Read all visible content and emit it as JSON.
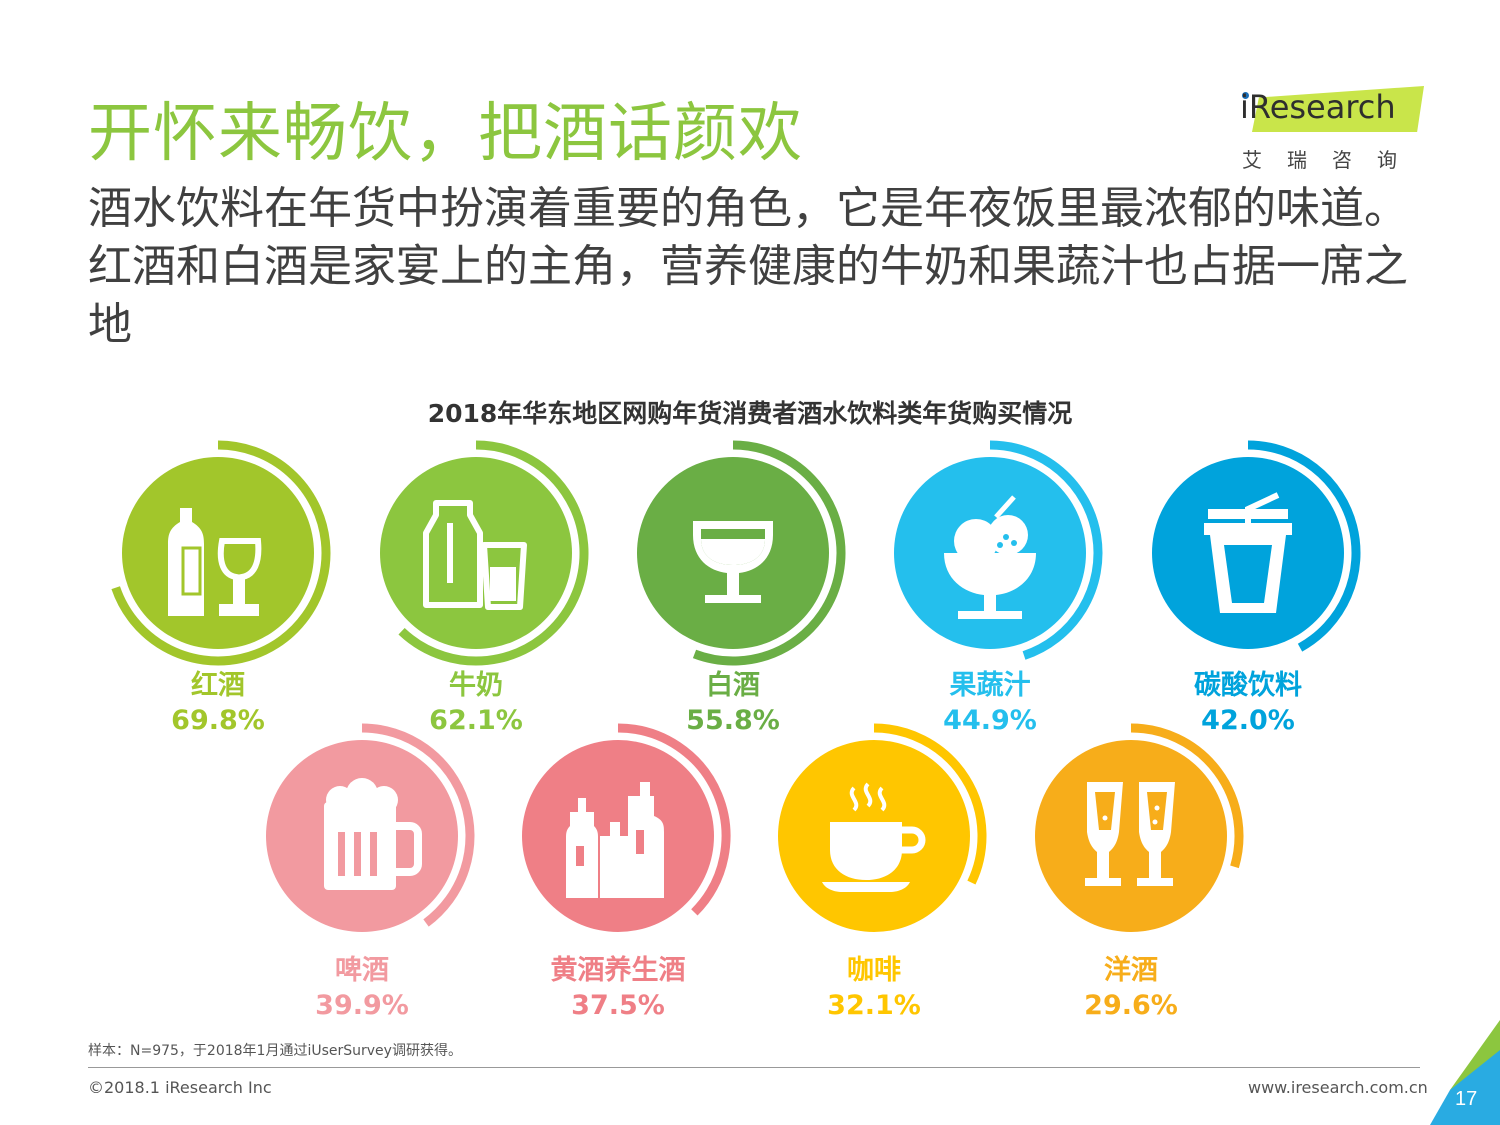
{
  "header": {
    "title": "开怀来畅饮，把酒话颜欢",
    "subtitle": "酒水饮料在年货中扮演着重要的角色，它是年夜饭里最浓郁的味道。红酒和白酒是家宴上的主角，营养健康的牛奶和果蔬汁也占据一席之地"
  },
  "logo": {
    "text": "iResearch",
    "cn": "艾瑞咨询"
  },
  "chart_data": {
    "type": "bar",
    "title": "2018年华东地区网购年货消费者酒水饮料类年货购买情况",
    "categories": [
      "红酒",
      "牛奶",
      "白酒",
      "果蔬汁",
      "碳酸饮料",
      "啤酒",
      "黄酒养生酒",
      "咖啡",
      "洋酒"
    ],
    "values": [
      69.8,
      62.1,
      55.8,
      44.9,
      42.0,
      39.9,
      37.5,
      32.1,
      29.6
    ],
    "labels": [
      "69.8%",
      "62.1%",
      "55.8%",
      "44.9%",
      "42.0%",
      "39.9%",
      "37.5%",
      "32.1%",
      "29.6%"
    ],
    "unit": "%",
    "colors": [
      "#a2c62b",
      "#8cc63f",
      "#6aae45",
      "#24bfed",
      "#00a3dc",
      "#f29aa0",
      "#ef7f86",
      "#ffc600",
      "#f7ad1a"
    ],
    "icons": [
      "wine-icon",
      "milk-icon",
      "liquor-glass-icon",
      "ice-cream-icon",
      "soda-cup-icon",
      "beer-mug-icon",
      "bottles-icon",
      "coffee-cup-icon",
      "champagne-icon"
    ]
  },
  "footer": {
    "note": "样本：N=975，于2018年1月通过iUserSurvey调研获得。",
    "copyright": "©2018.1 iResearch Inc",
    "site": "www.iresearch.com.cn",
    "page": "17"
  }
}
